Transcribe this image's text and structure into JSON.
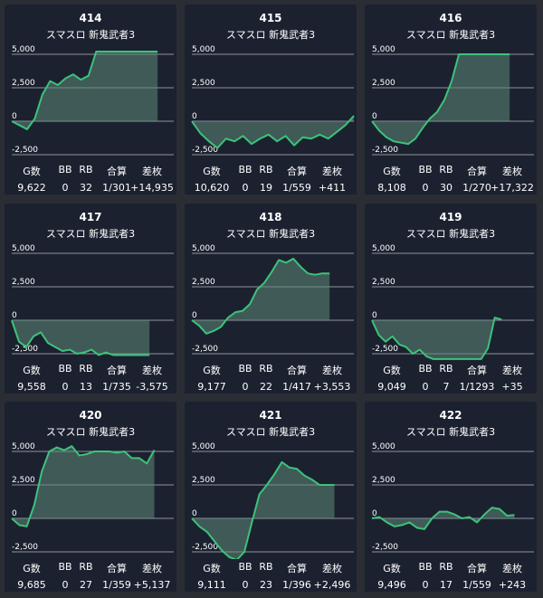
{
  "stat_headers": [
    "G数",
    "BB",
    "RB",
    "合算",
    "差枚"
  ],
  "colors": {
    "background": "#2a2d33",
    "card": "#1c2130",
    "line": "#3cc37a",
    "fill": "#5f8a78",
    "grid": "#cfd3da"
  },
  "chart_data": [
    {
      "type": "area",
      "title": "414",
      "subtitle": "スマスロ 新鬼武者3",
      "y_ticks": [
        "5,000",
        "2,500",
        "0",
        "-2,500"
      ],
      "ylim": [
        -3300,
        6000
      ],
      "values": [
        0,
        -300,
        -600,
        200,
        2000,
        3000,
        2700,
        3200,
        3500,
        3100,
        3400,
        5200,
        5200,
        5200,
        5200,
        5200,
        5200,
        5200,
        5200,
        5200
      ],
      "progress": 0.9,
      "stats": {
        "games": "9,622",
        "bb": "0",
        "rb": "32",
        "combined": "1/301",
        "diff": "+14,935"
      }
    },
    {
      "type": "area",
      "title": "415",
      "subtitle": "スマスロ 新鬼武者3",
      "y_ticks": [
        "5,000",
        "2,500",
        "0",
        "-2,500"
      ],
      "ylim": [
        -3300,
        6000
      ],
      "values": [
        0,
        -900,
        -1500,
        -2000,
        -1300,
        -1500,
        -1100,
        -1700,
        -1300,
        -1000,
        -1500,
        -1100,
        -1800,
        -1200,
        -1300,
        -1000,
        -1300,
        -800,
        -300,
        400
      ],
      "progress": 1.0,
      "stats": {
        "games": "10,620",
        "bb": "0",
        "rb": "19",
        "combined": "1/559",
        "diff": "+411"
      }
    },
    {
      "type": "area",
      "title": "416",
      "subtitle": "スマスロ 新鬼武者3",
      "y_ticks": [
        "5,000",
        "2,500",
        "0",
        "-2,500"
      ],
      "ylim": [
        -3300,
        6000
      ],
      "values": [
        0,
        -700,
        -1200,
        -1500,
        -1600,
        -1700,
        -1300,
        -500,
        200,
        700,
        1600,
        3000,
        5000,
        5000,
        5000,
        5000,
        5000,
        5000,
        5000,
        5000
      ],
      "progress": 0.85,
      "stats": {
        "games": "8,108",
        "bb": "0",
        "rb": "30",
        "combined": "1/270",
        "diff": "+17,322"
      }
    },
    {
      "type": "area",
      "title": "417",
      "subtitle": "スマスロ 新鬼武者3",
      "y_ticks": [
        "5,000",
        "2,500",
        "0",
        "-2,500"
      ],
      "ylim": [
        -3300,
        6000
      ],
      "values": [
        0,
        -1600,
        -2000,
        -1200,
        -900,
        -1700,
        -2000,
        -2300,
        -2200,
        -2500,
        -2400,
        -2200,
        -2600,
        -2400,
        -2600,
        -2600,
        -2600,
        -2600,
        -2600,
        -2600
      ],
      "progress": 0.85,
      "stats": {
        "games": "9,558",
        "bb": "0",
        "rb": "13",
        "combined": "1/735",
        "diff": "-3,575"
      }
    },
    {
      "type": "area",
      "title": "418",
      "subtitle": "スマスロ 新鬼武者3",
      "y_ticks": [
        "5,000",
        "2,500",
        "0",
        "-2,500"
      ],
      "ylim": [
        -3300,
        6000
      ],
      "values": [
        0,
        -400,
        -1000,
        -800,
        -500,
        200,
        600,
        700,
        1200,
        2300,
        2800,
        3600,
        4500,
        4300,
        4600,
        4000,
        3500,
        3400,
        3500,
        3500
      ],
      "progress": 0.85,
      "stats": {
        "games": "9,177",
        "bb": "0",
        "rb": "22",
        "combined": "1/417",
        "diff": "+3,553"
      }
    },
    {
      "type": "area",
      "title": "419",
      "subtitle": "スマスロ 新鬼武者3",
      "y_ticks": [
        "5,000",
        "2,500",
        "0",
        "-2,500"
      ],
      "ylim": [
        -3300,
        6000
      ],
      "values": [
        0,
        -1100,
        -1600,
        -1200,
        -1800,
        -2000,
        -2500,
        -2200,
        -2700,
        -2900,
        -2900,
        -2900,
        -2900,
        -2900,
        -2900,
        -2900,
        -2900,
        -2100,
        200,
        50
      ],
      "progress": 0.8,
      "stats": {
        "games": "9,049",
        "bb": "0",
        "rb": "7",
        "combined": "1/1293",
        "diff": "+35"
      }
    },
    {
      "type": "area",
      "title": "420",
      "subtitle": "スマスロ 新鬼武者3",
      "y_ticks": [
        "5,000",
        "2,500",
        "0",
        "-2,500"
      ],
      "ylim": [
        -3300,
        6000
      ],
      "values": [
        0,
        -500,
        -600,
        1000,
        3500,
        5000,
        5300,
        5100,
        5400,
        4700,
        4800,
        5000,
        5000,
        5000,
        4900,
        5000,
        4500,
        4500,
        4100,
        5100
      ],
      "progress": 0.88,
      "stats": {
        "games": "9,685",
        "bb": "0",
        "rb": "27",
        "combined": "1/359",
        "diff": "+5,137"
      }
    },
    {
      "type": "area",
      "title": "421",
      "subtitle": "スマスロ 新鬼武者3",
      "y_ticks": [
        "5,000",
        "2,500",
        "0",
        "-2,500"
      ],
      "ylim": [
        -3300,
        6000
      ],
      "values": [
        0,
        -600,
        -1000,
        -1700,
        -2400,
        -2900,
        -3100,
        -2500,
        -300,
        1800,
        2500,
        3300,
        4200,
        3800,
        3700,
        3200,
        2900,
        2500,
        2500,
        2500
      ],
      "progress": 0.88,
      "stats": {
        "games": "9,111",
        "bb": "0",
        "rb": "23",
        "combined": "1/396",
        "diff": "+2,496"
      }
    },
    {
      "type": "area",
      "title": "422",
      "subtitle": "スマスロ 新鬼武者3",
      "y_ticks": [
        "5,000",
        "2,500",
        "0",
        "-2,500"
      ],
      "ylim": [
        -3300,
        6000
      ],
      "values": [
        0,
        100,
        -300,
        -600,
        -500,
        -300,
        -700,
        -800,
        0,
        500,
        500,
        300,
        0,
        100,
        -300,
        300,
        800,
        700,
        200,
        250
      ],
      "progress": 0.88,
      "stats": {
        "games": "9,496",
        "bb": "0",
        "rb": "17",
        "combined": "1/559",
        "diff": "+243"
      }
    }
  ]
}
